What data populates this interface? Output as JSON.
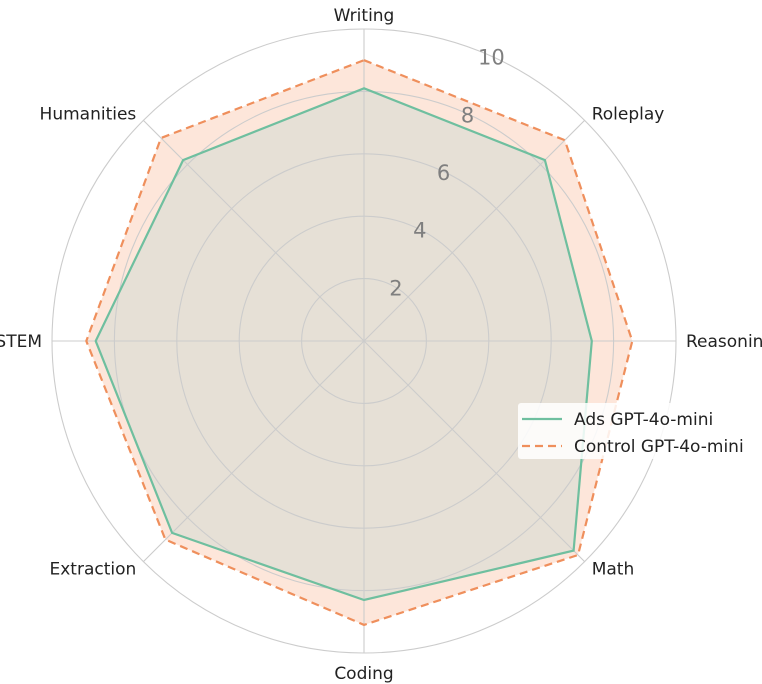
{
  "chart_data": {
    "type": "radar",
    "categories": [
      "Writing",
      "Roleplay",
      "Reasoning",
      "Math",
      "Coding",
      "Extraction",
      "STEM",
      "Humanities"
    ],
    "rlim": [
      0,
      10
    ],
    "rticks": [
      2,
      4,
      6,
      8,
      10
    ],
    "rtick_labels": [
      "2",
      "4",
      "6",
      "8",
      "10"
    ],
    "grid": true,
    "legend_position": "right",
    "series": [
      {
        "name": "Ads GPT-4o-mini",
        "values": [
          8.1,
          8.2,
          7.3,
          9.5,
          8.3,
          8.7,
          8.6,
          8.2
        ],
        "color": "#6fbf9f",
        "fill": "#e6e0d6",
        "dashed": false
      },
      {
        "name": "Control GPT-4o-mini",
        "values": [
          9.0,
          9.1,
          8.6,
          9.7,
          9.1,
          9.0,
          8.9,
          9.2
        ],
        "color": "#ef8f5c",
        "fill": "#fde6da",
        "dashed": true
      }
    ]
  }
}
